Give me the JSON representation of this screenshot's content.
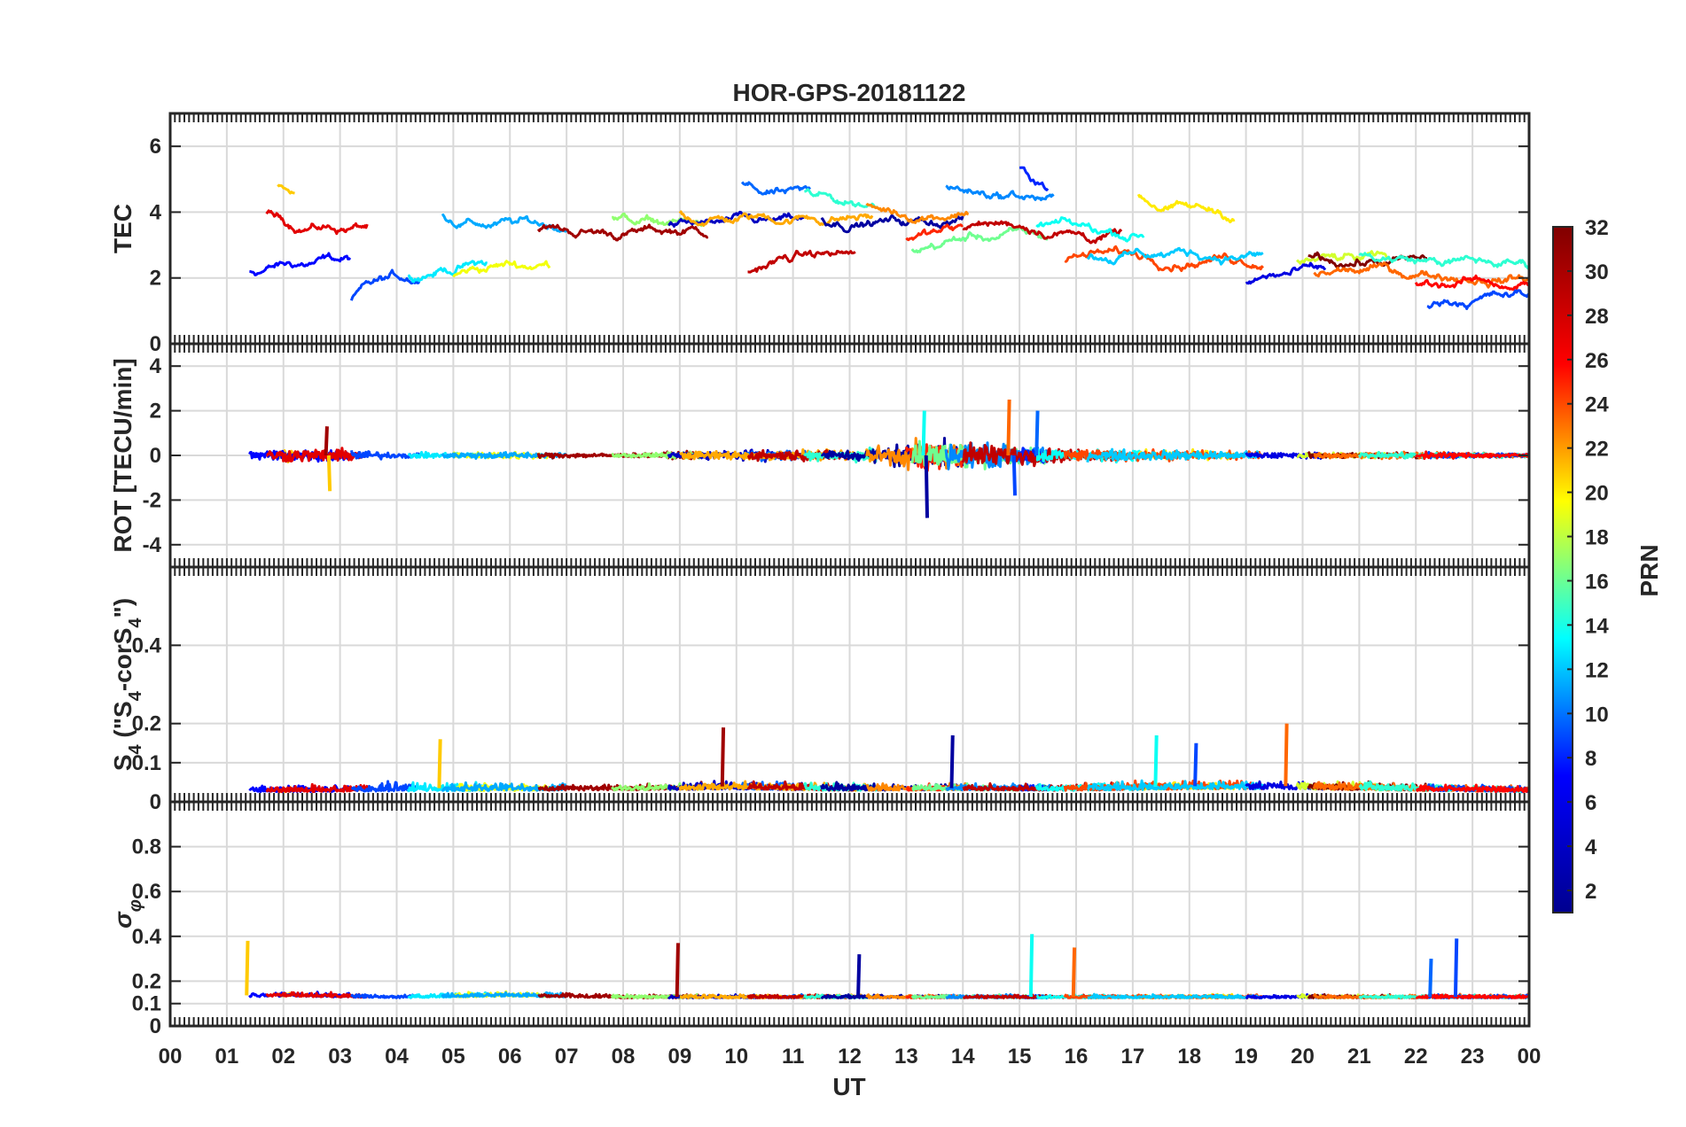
{
  "chart_data": {
    "type": "line",
    "title": "HOR-GPS-20181122",
    "xlabel": "UT",
    "x_tick_labels": [
      "00",
      "01",
      "02",
      "03",
      "04",
      "05",
      "06",
      "07",
      "08",
      "09",
      "10",
      "11",
      "12",
      "13",
      "14",
      "15",
      "16",
      "17",
      "18",
      "19",
      "20",
      "21",
      "22",
      "23",
      "00"
    ],
    "x_range_hours": [
      0,
      24
    ],
    "grid": true,
    "colorbar": {
      "label": "PRN",
      "range": [
        1,
        32
      ],
      "colormap": "jet",
      "ticks": [
        2,
        4,
        6,
        8,
        10,
        12,
        14,
        16,
        18,
        20,
        22,
        24,
        26,
        28,
        30,
        32
      ],
      "tick_labels": [
        "2",
        "4",
        "6",
        "8",
        "10",
        "12",
        "14",
        "16",
        "18",
        "20",
        "22",
        "24",
        "26",
        "28",
        "30",
        "32"
      ],
      "jet_colors": [
        "#00008f",
        "#0000ff",
        "#00ffff",
        "#ffff00",
        "#ff0000",
        "#800000"
      ]
    },
    "panels": [
      {
        "id": "tec",
        "ylabel": "TEC",
        "ylim": [
          0,
          7
        ],
        "yticks": [
          0,
          2,
          4,
          6
        ],
        "ytick_labels": [
          "0",
          "2",
          "4",
          "6"
        ],
        "profile": {
          "kind": "level",
          "hours": [
            0,
            2,
            4,
            6,
            8,
            10,
            12,
            13,
            14,
            15,
            16,
            18,
            20,
            22,
            24
          ],
          "mean": [
            2.2,
            2.9,
            3.2,
            3.1,
            3.2,
            3.6,
            3.7,
            3.5,
            4.2,
            4.0,
            3.0,
            3.0,
            2.6,
            2.2,
            1.8
          ],
          "spread": [
            0.9,
            1.2,
            1.1,
            1.0,
            0.9,
            1.1,
            0.9,
            0.9,
            1.3,
            1.2,
            1.0,
            1.0,
            0.9,
            0.9,
            0.8
          ]
        },
        "tracks": [
          {
            "prn": 22,
            "start": 1.9,
            "end": 2.2,
            "level": 4.8
          },
          {
            "prn": 5,
            "start": 1.4,
            "end": 3.2,
            "level": 2.2
          },
          {
            "prn": 29,
            "start": 1.7,
            "end": 3.5,
            "level": 3.9
          },
          {
            "prn": 7,
            "start": 3.2,
            "end": 4.4,
            "level": 1.3
          },
          {
            "prn": 12,
            "start": 4.2,
            "end": 5.6,
            "level": 2.0
          },
          {
            "prn": 20,
            "start": 5.0,
            "end": 6.7,
            "level": 2.0
          },
          {
            "prn": 10,
            "start": 4.8,
            "end": 7.0,
            "level": 3.9
          },
          {
            "prn": 31,
            "start": 6.5,
            "end": 9.5,
            "level": 3.5
          },
          {
            "prn": 17,
            "start": 7.8,
            "end": 9.4,
            "level": 3.8
          },
          {
            "prn": 3,
            "start": 8.8,
            "end": 11.2,
            "level": 3.6
          },
          {
            "prn": 8,
            "start": 10.1,
            "end": 11.3,
            "level": 4.9
          },
          {
            "prn": 23,
            "start": 9.0,
            "end": 12.4,
            "level": 4.0
          },
          {
            "prn": 30,
            "start": 10.2,
            "end": 12.1,
            "level": 2.1
          },
          {
            "prn": 14,
            "start": 11.2,
            "end": 12.5,
            "level": 4.6
          },
          {
            "prn": 2,
            "start": 11.5,
            "end": 14.0,
            "level": 3.8
          },
          {
            "prn": 24,
            "start": 12.3,
            "end": 14.1,
            "level": 4.2
          },
          {
            "prn": 27,
            "start": 13.0,
            "end": 14.0,
            "level": 3.2
          },
          {
            "prn": 16,
            "start": 13.1,
            "end": 15.5,
            "level": 2.8
          },
          {
            "prn": 9,
            "start": 13.7,
            "end": 15.6,
            "level": 4.8
          },
          {
            "prn": 6,
            "start": 15.0,
            "end": 15.5,
            "level": 5.3
          },
          {
            "prn": 30,
            "start": 14.0,
            "end": 16.8,
            "level": 3.4
          },
          {
            "prn": 13,
            "start": 15.3,
            "end": 17.2,
            "level": 3.6
          },
          {
            "prn": 21,
            "start": 17.1,
            "end": 18.8,
            "level": 4.6
          },
          {
            "prn": 26,
            "start": 15.8,
            "end": 19.3,
            "level": 2.5
          },
          {
            "prn": 11,
            "start": 16.2,
            "end": 19.3,
            "level": 2.6
          },
          {
            "prn": 4,
            "start": 19.0,
            "end": 20.4,
            "level": 1.8
          },
          {
            "prn": 19,
            "start": 19.9,
            "end": 21.5,
            "level": 2.5
          },
          {
            "prn": 32,
            "start": 20.1,
            "end": 22.2,
            "level": 2.6
          },
          {
            "prn": 25,
            "start": 20.2,
            "end": 24.0,
            "level": 2.1
          },
          {
            "prn": 14,
            "start": 21.0,
            "end": 24.0,
            "level": 2.7
          },
          {
            "prn": 7,
            "start": 22.2,
            "end": 24.0,
            "level": 1.1
          },
          {
            "prn": 28,
            "start": 22.0,
            "end": 24.0,
            "level": 1.8
          }
        ]
      },
      {
        "id": "rot",
        "ylabel": "ROT [TECU/min]",
        "ylim": [
          -5,
          5
        ],
        "yticks": [
          -4,
          -2,
          0,
          2,
          4
        ],
        "ytick_labels": [
          "-4",
          "-2",
          "0",
          "2",
          "4"
        ],
        "profile": {
          "kind": "zero",
          "hours": [
            0,
            1,
            2,
            3,
            4,
            6,
            8,
            10,
            12,
            13,
            14,
            15,
            16,
            18,
            20,
            22,
            24
          ],
          "mean": [
            0,
            0,
            0,
            0,
            0,
            0,
            0,
            0,
            0,
            0,
            0,
            0,
            0,
            0,
            0,
            0,
            0
          ],
          "spread": [
            0.1,
            0.2,
            0.4,
            0.4,
            0.15,
            0.2,
            0.1,
            0.3,
            0.3,
            0.8,
            0.8,
            0.6,
            0.35,
            0.3,
            0.15,
            0.2,
            0.1
          ]
        },
        "spikes": [
          {
            "hour": 2.8,
            "value": -1.6
          },
          {
            "hour": 2.75,
            "value": 1.3
          },
          {
            "hour": 13.35,
            "value": -2.8
          },
          {
            "hour": 13.3,
            "value": 2.0
          },
          {
            "hour": 14.8,
            "value": 2.5
          },
          {
            "hour": 14.9,
            "value": -1.8
          },
          {
            "hour": 15.3,
            "value": 2.0
          }
        ]
      },
      {
        "id": "s4",
        "ylabel": "S4 (\"S4-corS4\")",
        "ylim": [
          0,
          0.6
        ],
        "yticks": [
          0,
          0.1,
          0.2,
          0.4
        ],
        "ytick_labels": [
          "0",
          "0.1",
          "0.2",
          "0.4"
        ],
        "profile": {
          "kind": "floor",
          "hours": [
            0,
            2,
            4,
            6,
            8,
            10,
            12,
            14,
            16,
            18,
            20,
            22,
            24
          ],
          "mean": [
            0.03,
            0.03,
            0.035,
            0.035,
            0.035,
            0.04,
            0.035,
            0.035,
            0.035,
            0.04,
            0.04,
            0.035,
            0.03
          ],
          "spread": [
            0.02,
            0.02,
            0.03,
            0.025,
            0.02,
            0.03,
            0.025,
            0.02,
            0.025,
            0.03,
            0.03,
            0.025,
            0.02
          ]
        },
        "spikes": [
          {
            "hour": 4.75,
            "value": 0.16
          },
          {
            "hour": 9.75,
            "value": 0.19
          },
          {
            "hour": 13.8,
            "value": 0.17
          },
          {
            "hour": 17.4,
            "value": 0.17
          },
          {
            "hour": 19.7,
            "value": 0.2
          },
          {
            "hour": 18.1,
            "value": 0.15
          }
        ]
      },
      {
        "id": "sigma_phi",
        "ylabel": "σφ",
        "ylim": [
          0,
          1
        ],
        "yticks": [
          0,
          0.1,
          0.2,
          0.4,
          0.6,
          0.8
        ],
        "ytick_labels": [
          "0",
          "0.1",
          "0.2",
          "0.4",
          "0.6",
          "0.8"
        ],
        "profile": {
          "kind": "floor",
          "hours": [
            0,
            2,
            4,
            6,
            8,
            10,
            12,
            14,
            16,
            18,
            20,
            22,
            24
          ],
          "mean": [
            0.13,
            0.14,
            0.13,
            0.14,
            0.13,
            0.13,
            0.13,
            0.13,
            0.13,
            0.13,
            0.13,
            0.13,
            0.13
          ],
          "spread": [
            0.02,
            0.03,
            0.02,
            0.03,
            0.02,
            0.02,
            0.02,
            0.02,
            0.02,
            0.02,
            0.02,
            0.02,
            0.02
          ]
        },
        "spikes": [
          {
            "hour": 1.35,
            "value": 0.38
          },
          {
            "hour": 8.95,
            "value": 0.37
          },
          {
            "hour": 12.15,
            "value": 0.32
          },
          {
            "hour": 15.2,
            "value": 0.41
          },
          {
            "hour": 15.95,
            "value": 0.35
          },
          {
            "hour": 22.7,
            "value": 0.39
          },
          {
            "hour": 22.25,
            "value": 0.3
          }
        ]
      }
    ]
  }
}
